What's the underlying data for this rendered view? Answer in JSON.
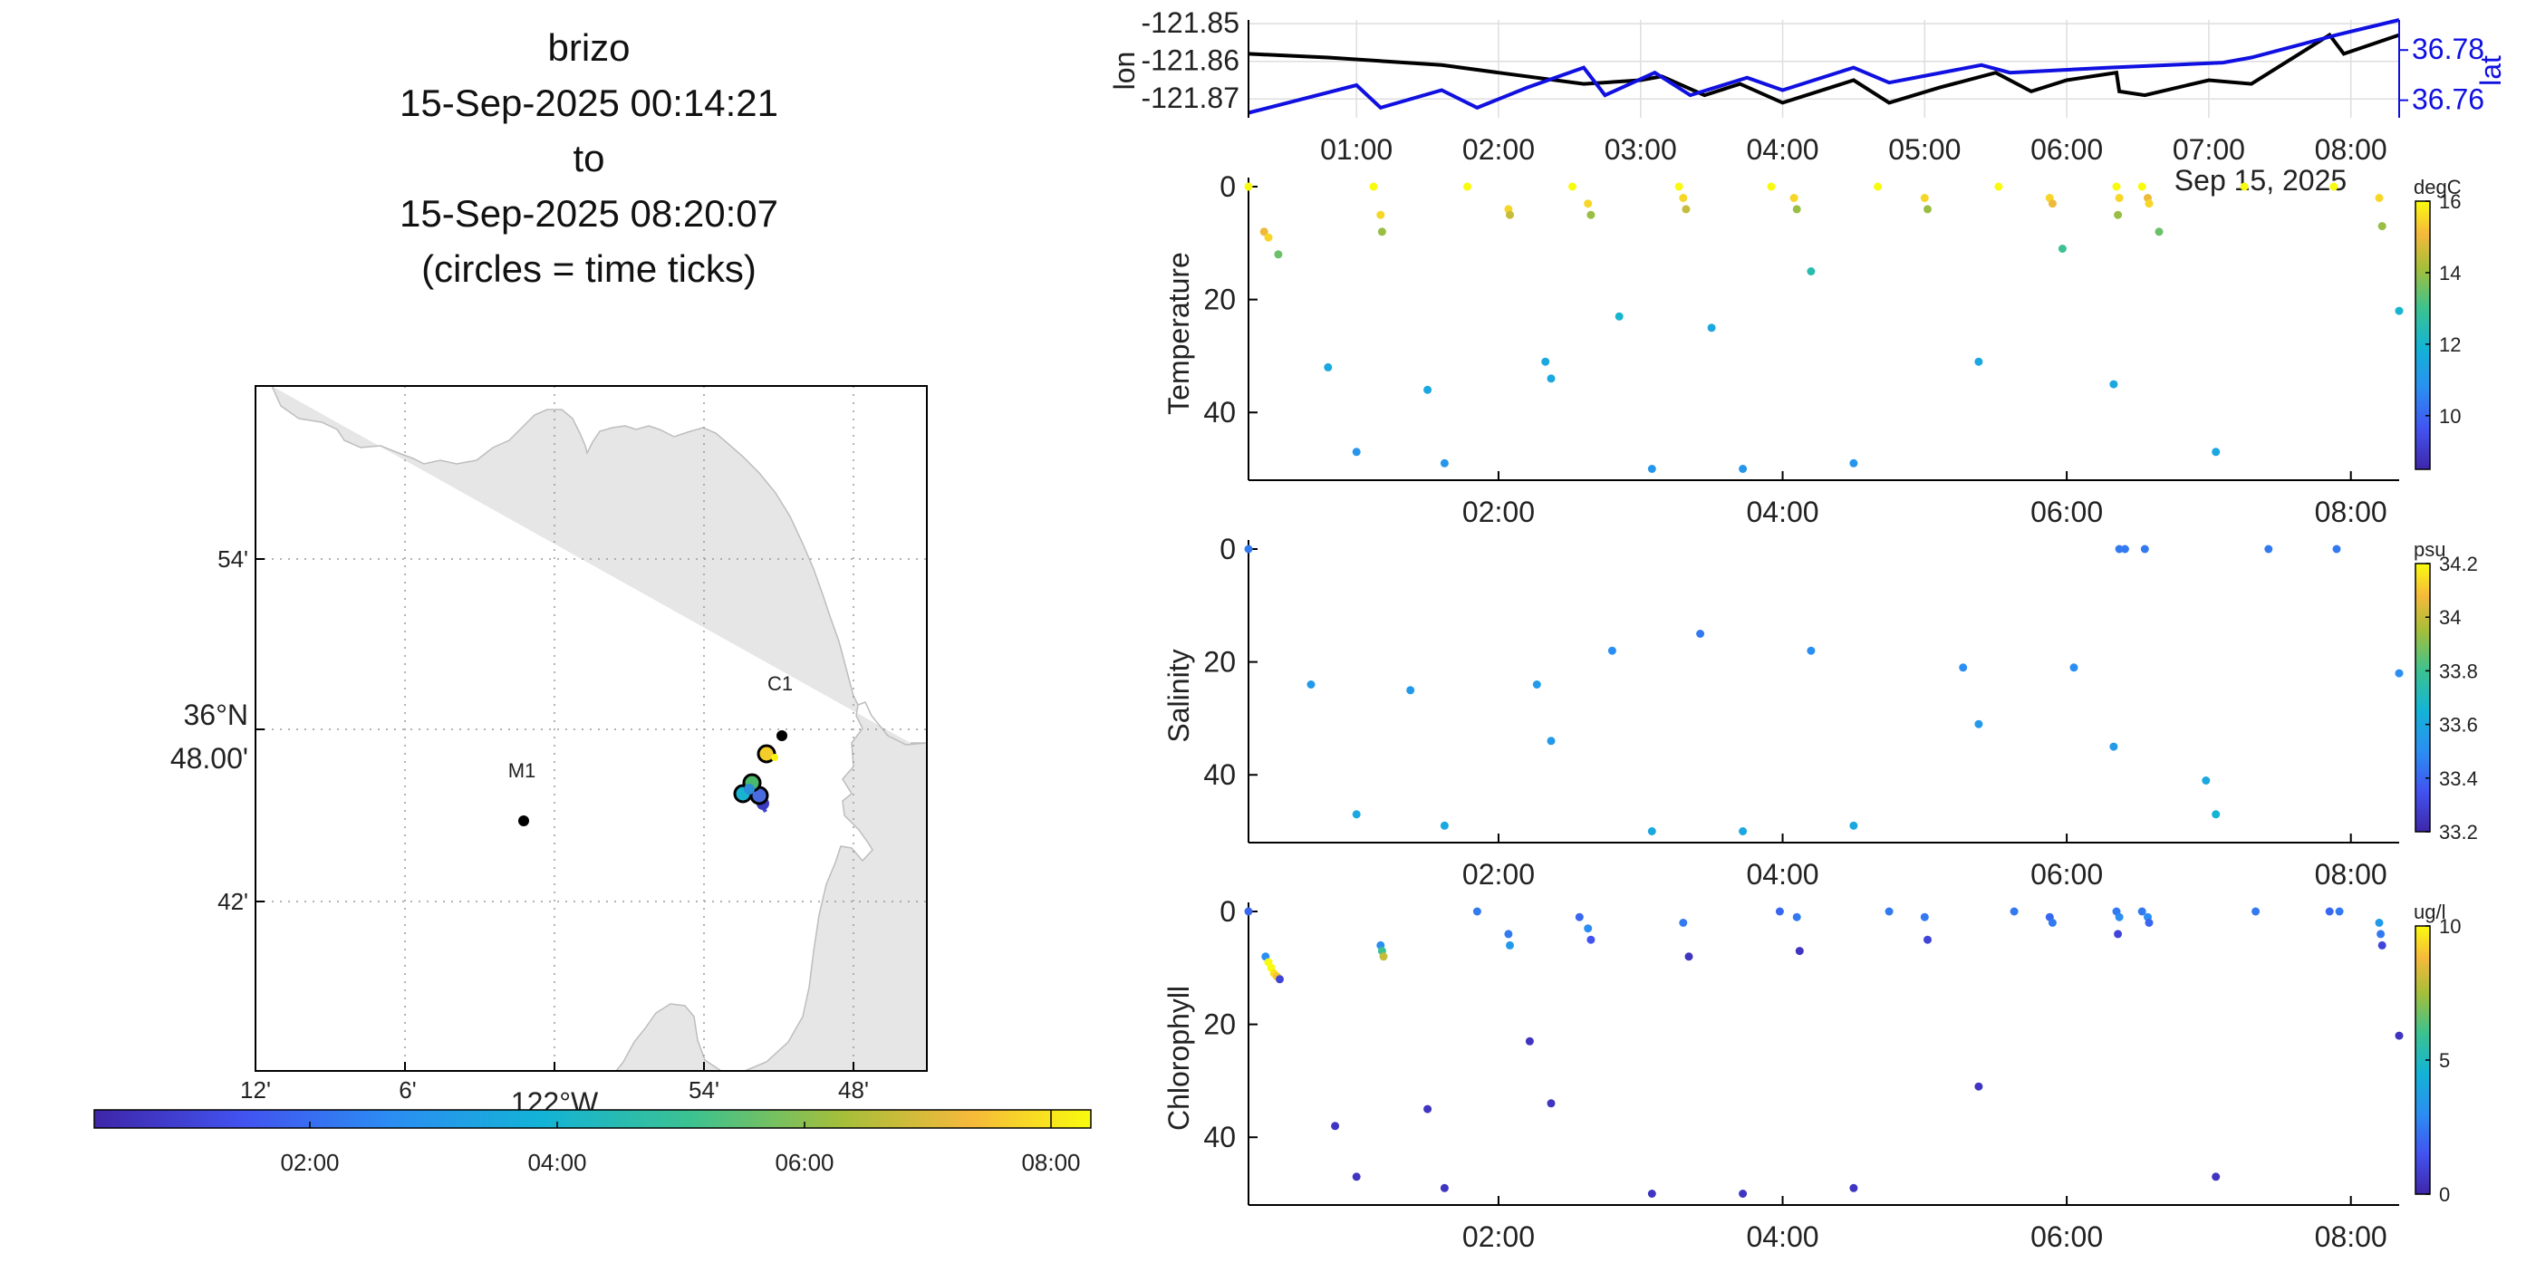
{
  "title": {
    "lines": [
      "brizo",
      "15-Sep-2025 00:14:21",
      "to",
      "15-Sep-2025 08:20:07",
      "(circles = time ticks)"
    ]
  },
  "map": {
    "lat_ticks": [
      "54'",
      "36°N",
      "48.00'",
      "42'"
    ],
    "lon_ticks": [
      "12'",
      "6'",
      "122°W",
      "54'",
      "48'"
    ],
    "stations": [
      {
        "name": "M1",
        "lon": -122.03,
        "lat": 36.75
      },
      {
        "name": "C1",
        "lon": -121.85,
        "lat": 36.8
      }
    ],
    "land_color": "#e6e6e6",
    "grid": "dotted"
  },
  "time_colorbar": {
    "ticks": [
      "02:00",
      "04:00",
      "06:00",
      "08:00"
    ],
    "colormap": "parula"
  },
  "chart_data": [
    {
      "type": "line",
      "xlabel": "",
      "ylabel": "lon",
      "ylabel_right": "lat",
      "x_ticks": [
        "01:00",
        "02:00",
        "03:00",
        "04:00",
        "05:00",
        "06:00",
        "07:00",
        "08:00"
      ],
      "x_overflow_label": "Sep 15, 2025",
      "y_ticks": [
        "-121.85",
        "-121.86",
        "-121.87"
      ],
      "y_right_ticks": [
        "36.78",
        "36.76"
      ],
      "ylim": [
        -121.875,
        -121.849
      ],
      "ylim_right": [
        36.753,
        36.792
      ],
      "xlim": [
        0.24,
        8.34
      ],
      "grid": true,
      "series": [
        {
          "name": "lon",
          "color": "#000000",
          "x": [
            0.24,
            0.8,
            1.6,
            2.0,
            2.6,
            3.0,
            3.15,
            3.45,
            3.7,
            4.0,
            4.5,
            4.75,
            5.1,
            5.5,
            5.75,
            6.0,
            6.35,
            6.37,
            6.55,
            7.0,
            7.3,
            7.85,
            7.95,
            8.34
          ],
          "y": [
            -121.858,
            -121.859,
            -121.861,
            -121.863,
            -121.866,
            -121.865,
            -121.864,
            -121.869,
            -121.866,
            -121.871,
            -121.865,
            -121.871,
            -121.867,
            -121.863,
            -121.868,
            -121.865,
            -121.863,
            -121.868,
            -121.869,
            -121.865,
            -121.866,
            -121.853,
            -121.858,
            -121.853
          ]
        },
        {
          "name": "lat",
          "color": "#1010e0",
          "x": [
            0.24,
            1.0,
            1.17,
            1.6,
            1.85,
            2.2,
            2.6,
            2.75,
            3.1,
            3.35,
            3.75,
            4.0,
            4.5,
            4.75,
            5.4,
            5.6,
            6.3,
            7.1,
            7.3,
            7.9,
            8.34
          ],
          "y": [
            36.755,
            36.766,
            36.757,
            36.764,
            36.757,
            36.765,
            36.773,
            36.762,
            36.771,
            36.762,
            36.769,
            36.764,
            36.773,
            36.767,
            36.774,
            36.771,
            36.773,
            36.775,
            36.777,
            36.786,
            36.792
          ]
        }
      ]
    },
    {
      "type": "scatter",
      "ylabel": "Temperature",
      "unit": "degC",
      "cbar_ticks": [
        "16",
        "14",
        "12",
        "10"
      ],
      "clim": [
        8.5,
        16
      ],
      "x_ticks": [
        "02:00",
        "04:00",
        "06:00",
        "08:00"
      ],
      "y_ticks": [
        "0",
        "20",
        "40"
      ],
      "ylim": [
        0,
        52
      ],
      "xlim": [
        0.24,
        8.34
      ],
      "points": [
        {
          "x": 0.24,
          "y": 0,
          "v": 16
        },
        {
          "x": 0.35,
          "y": 8,
          "v": 15
        },
        {
          "x": 0.38,
          "y": 9,
          "v": 15.5
        },
        {
          "x": 0.45,
          "y": 12,
          "v": 13.5
        },
        {
          "x": 0.8,
          "y": 32,
          "v": 11.5
        },
        {
          "x": 1.0,
          "y": 47,
          "v": 11
        },
        {
          "x": 1.12,
          "y": 0,
          "v": 16
        },
        {
          "x": 1.17,
          "y": 5,
          "v": 15.5
        },
        {
          "x": 1.18,
          "y": 8,
          "v": 14
        },
        {
          "x": 1.5,
          "y": 36,
          "v": 11.5
        },
        {
          "x": 1.62,
          "y": 49,
          "v": 11
        },
        {
          "x": 1.78,
          "y": 0,
          "v": 16
        },
        {
          "x": 2.07,
          "y": 4,
          "v": 15.5
        },
        {
          "x": 2.08,
          "y": 5,
          "v": 14.5
        },
        {
          "x": 2.33,
          "y": 31,
          "v": 11.5
        },
        {
          "x": 2.37,
          "y": 34,
          "v": 11.5
        },
        {
          "x": 2.52,
          "y": 0,
          "v": 16
        },
        {
          "x": 2.63,
          "y": 3,
          "v": 15.5
        },
        {
          "x": 2.65,
          "y": 5,
          "v": 14
        },
        {
          "x": 2.85,
          "y": 23,
          "v": 12
        },
        {
          "x": 3.08,
          "y": 50,
          "v": 11
        },
        {
          "x": 3.27,
          "y": 0,
          "v": 16
        },
        {
          "x": 3.3,
          "y": 2,
          "v": 15.5
        },
        {
          "x": 3.32,
          "y": 4,
          "v": 14.5
        },
        {
          "x": 3.5,
          "y": 25,
          "v": 11.5
        },
        {
          "x": 3.72,
          "y": 50,
          "v": 11
        },
        {
          "x": 3.92,
          "y": 0,
          "v": 16
        },
        {
          "x": 4.08,
          "y": 2,
          "v": 15.5
        },
        {
          "x": 4.1,
          "y": 4,
          "v": 14
        },
        {
          "x": 4.2,
          "y": 15,
          "v": 12.5
        },
        {
          "x": 4.5,
          "y": 49,
          "v": 11
        },
        {
          "x": 4.67,
          "y": 0,
          "v": 16
        },
        {
          "x": 5.0,
          "y": 2,
          "v": 15.5
        },
        {
          "x": 5.02,
          "y": 4,
          "v": 14
        },
        {
          "x": 5.38,
          "y": 31,
          "v": 11.5
        },
        {
          "x": 5.52,
          "y": 0,
          "v": 16
        },
        {
          "x": 5.88,
          "y": 2,
          "v": 15.5
        },
        {
          "x": 5.9,
          "y": 3,
          "v": 15
        },
        {
          "x": 5.97,
          "y": 11,
          "v": 13
        },
        {
          "x": 6.33,
          "y": 35,
          "v": 11.5
        },
        {
          "x": 6.35,
          "y": 0,
          "v": 16
        },
        {
          "x": 6.37,
          "y": 2,
          "v": 15.5
        },
        {
          "x": 6.36,
          "y": 5,
          "v": 14
        },
        {
          "x": 6.53,
          "y": 0,
          "v": 16
        },
        {
          "x": 6.57,
          "y": 2,
          "v": 15
        },
        {
          "x": 6.58,
          "y": 3,
          "v": 15.5
        },
        {
          "x": 6.65,
          "y": 8,
          "v": 13.5
        },
        {
          "x": 7.05,
          "y": 47,
          "v": 11.5
        },
        {
          "x": 7.25,
          "y": 0,
          "v": 16
        },
        {
          "x": 7.88,
          "y": 0,
          "v": 16
        },
        {
          "x": 8.2,
          "y": 2,
          "v": 15.5
        },
        {
          "x": 8.22,
          "y": 7,
          "v": 14
        },
        {
          "x": 8.34,
          "y": 22,
          "v": 12
        }
      ]
    },
    {
      "type": "scatter",
      "ylabel": "Salinity",
      "unit": "psu",
      "cbar_ticks": [
        "34.2",
        "34",
        "33.8",
        "33.6",
        "33.4",
        "33.2"
      ],
      "clim": [
        33.2,
        34.2
      ],
      "x_ticks": [
        "02:00",
        "04:00",
        "06:00",
        "08:00"
      ],
      "y_ticks": [
        "0",
        "20",
        "40"
      ],
      "ylim": [
        0,
        52
      ],
      "xlim": [
        0.24,
        8.34
      ],
      "points": [
        {
          "x": 0.24,
          "y": 0,
          "v": 33.45
        },
        {
          "x": 0.68,
          "y": 24,
          "v": 33.55
        },
        {
          "x": 1.0,
          "y": 47,
          "v": 33.6
        },
        {
          "x": 1.38,
          "y": 25,
          "v": 33.55
        },
        {
          "x": 1.62,
          "y": 49,
          "v": 33.6
        },
        {
          "x": 2.27,
          "y": 24,
          "v": 33.55
        },
        {
          "x": 2.37,
          "y": 34,
          "v": 33.55
        },
        {
          "x": 2.8,
          "y": 18,
          "v": 33.5
        },
        {
          "x": 3.08,
          "y": 50,
          "v": 33.6
        },
        {
          "x": 3.42,
          "y": 15,
          "v": 33.45
        },
        {
          "x": 3.72,
          "y": 50,
          "v": 33.6
        },
        {
          "x": 4.2,
          "y": 18,
          "v": 33.5
        },
        {
          "x": 4.5,
          "y": 49,
          "v": 33.6
        },
        {
          "x": 5.27,
          "y": 21,
          "v": 33.5
        },
        {
          "x": 5.38,
          "y": 31,
          "v": 33.55
        },
        {
          "x": 6.05,
          "y": 21,
          "v": 33.5
        },
        {
          "x": 6.33,
          "y": 35,
          "v": 33.55
        },
        {
          "x": 6.37,
          "y": 0,
          "v": 33.45
        },
        {
          "x": 6.41,
          "y": 0,
          "v": 33.45
        },
        {
          "x": 6.55,
          "y": 0,
          "v": 33.45
        },
        {
          "x": 6.98,
          "y": 41,
          "v": 33.6
        },
        {
          "x": 7.05,
          "y": 47,
          "v": 33.65
        },
        {
          "x": 7.42,
          "y": 0,
          "v": 33.45
        },
        {
          "x": 7.9,
          "y": 0,
          "v": 33.45
        },
        {
          "x": 8.34,
          "y": 22,
          "v": 33.5
        }
      ]
    },
    {
      "type": "scatter",
      "ylabel": "Chlorophyll",
      "unit": "ug/l",
      "cbar_ticks": [
        "10",
        "5",
        "0"
      ],
      "clim": [
        0,
        10
      ],
      "x_ticks": [
        "02:00",
        "04:00",
        "06:00",
        "08:00"
      ],
      "y_ticks": [
        "0",
        "20",
        "40"
      ],
      "ylim": [
        0,
        52
      ],
      "xlim": [
        0.24,
        8.34
      ],
      "points": [
        {
          "x": 0.24,
          "y": 0,
          "v": 2
        },
        {
          "x": 0.36,
          "y": 8,
          "v": 3
        },
        {
          "x": 0.38,
          "y": 9,
          "v": 10
        },
        {
          "x": 0.4,
          "y": 10,
          "v": 10
        },
        {
          "x": 0.42,
          "y": 11,
          "v": 9.5
        },
        {
          "x": 0.44,
          "y": 11.5,
          "v": 9
        },
        {
          "x": 0.46,
          "y": 12,
          "v": 1
        },
        {
          "x": 0.85,
          "y": 38,
          "v": 0.5
        },
        {
          "x": 1.0,
          "y": 47,
          "v": 0.5
        },
        {
          "x": 1.17,
          "y": 6,
          "v": 3
        },
        {
          "x": 1.18,
          "y": 7,
          "v": 6
        },
        {
          "x": 1.19,
          "y": 8,
          "v": 8
        },
        {
          "x": 1.5,
          "y": 35,
          "v": 0.5
        },
        {
          "x": 1.62,
          "y": 49,
          "v": 0.5
        },
        {
          "x": 1.85,
          "y": 0,
          "v": 2.5
        },
        {
          "x": 2.07,
          "y": 4,
          "v": 2.5
        },
        {
          "x": 2.08,
          "y": 6,
          "v": 3.5
        },
        {
          "x": 2.22,
          "y": 23,
          "v": 0.5
        },
        {
          "x": 2.37,
          "y": 34,
          "v": 0.5
        },
        {
          "x": 2.57,
          "y": 1,
          "v": 2
        },
        {
          "x": 2.63,
          "y": 3,
          "v": 3
        },
        {
          "x": 2.65,
          "y": 5,
          "v": 1.5
        },
        {
          "x": 3.08,
          "y": 50,
          "v": 0.5
        },
        {
          "x": 3.3,
          "y": 2,
          "v": 2.5
        },
        {
          "x": 3.34,
          "y": 8,
          "v": 0.5
        },
        {
          "x": 3.72,
          "y": 50,
          "v": 0.5
        },
        {
          "x": 3.98,
          "y": 0,
          "v": 2
        },
        {
          "x": 4.1,
          "y": 1,
          "v": 2.5
        },
        {
          "x": 4.12,
          "y": 7,
          "v": 0.5
        },
        {
          "x": 4.5,
          "y": 49,
          "v": 0.5
        },
        {
          "x": 4.75,
          "y": 0,
          "v": 2.5
        },
        {
          "x": 5.0,
          "y": 1,
          "v": 2.5
        },
        {
          "x": 5.02,
          "y": 5,
          "v": 1
        },
        {
          "x": 5.38,
          "y": 31,
          "v": 0.5
        },
        {
          "x": 5.63,
          "y": 0,
          "v": 2.5
        },
        {
          "x": 5.88,
          "y": 1,
          "v": 2
        },
        {
          "x": 5.9,
          "y": 2,
          "v": 2.5
        },
        {
          "x": 6.35,
          "y": 0,
          "v": 2.5
        },
        {
          "x": 6.37,
          "y": 1,
          "v": 3
        },
        {
          "x": 6.36,
          "y": 4,
          "v": 1
        },
        {
          "x": 6.53,
          "y": 0,
          "v": 2.5
        },
        {
          "x": 6.57,
          "y": 1,
          "v": 3
        },
        {
          "x": 6.58,
          "y": 2,
          "v": 2
        },
        {
          "x": 7.05,
          "y": 47,
          "v": 0.5
        },
        {
          "x": 7.33,
          "y": 0,
          "v": 2.5
        },
        {
          "x": 7.85,
          "y": 0,
          "v": 2
        },
        {
          "x": 7.92,
          "y": 0,
          "v": 2.5
        },
        {
          "x": 8.2,
          "y": 2,
          "v": 3.5
        },
        {
          "x": 8.21,
          "y": 4,
          "v": 2.5
        },
        {
          "x": 8.22,
          "y": 6,
          "v": 1
        },
        {
          "x": 8.34,
          "y": 22,
          "v": 0.5
        }
      ]
    }
  ]
}
